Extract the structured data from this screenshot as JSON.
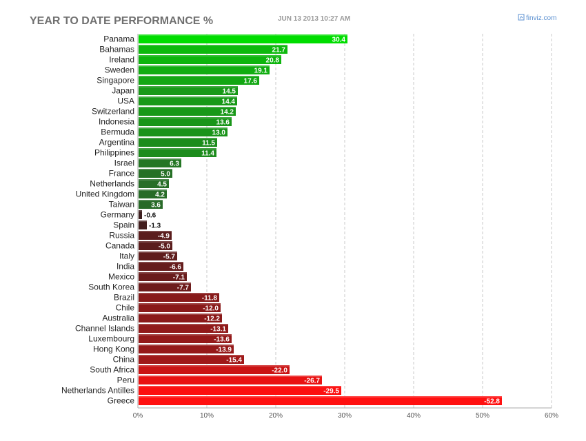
{
  "header": {
    "title": "YEAR TO DATE PERFORMANCE %",
    "timestamp": "JUN 13 2013 10:27 AM",
    "brand": "finviz.com",
    "brand_icon": "finviz-logo-icon"
  },
  "colors": {
    "positive_high": "#00dd00",
    "positive_low": "#2e5a2e",
    "negative_low": "#3a2020",
    "negative_high": "#ff1010",
    "grid": "#c8c8c8"
  },
  "chart_data": {
    "type": "bar",
    "orientation": "horizontal",
    "title": "YEAR TO DATE PERFORMANCE %",
    "xlabel": "",
    "ylabel": "",
    "xlim": [
      0,
      60
    ],
    "x_ticks": [
      "0%",
      "10%",
      "20%",
      "30%",
      "40%",
      "50%",
      "60%"
    ],
    "grid": true,
    "bar_length": "absolute value",
    "categories": [
      "Panama",
      "Bahamas",
      "Ireland",
      "Sweden",
      "Singapore",
      "Japan",
      "USA",
      "Switzerland",
      "Indonesia",
      "Bermuda",
      "Argentina",
      "Philippines",
      "Israel",
      "France",
      "Netherlands",
      "United Kingdom",
      "Taiwan",
      "Germany",
      "Spain",
      "Russia",
      "Canada",
      "Italy",
      "India",
      "Mexico",
      "South Korea",
      "Brazil",
      "Chile",
      "Australia",
      "Channel Islands",
      "Luxembourg",
      "Hong Kong",
      "China",
      "South Africa",
      "Peru",
      "Netherlands Antilles",
      "Greece"
    ],
    "values": [
      30.4,
      21.7,
      20.8,
      19.1,
      17.6,
      14.5,
      14.4,
      14.2,
      13.6,
      13.0,
      11.5,
      11.4,
      6.3,
      5.0,
      4.5,
      4.2,
      3.6,
      -0.6,
      -1.3,
      -4.9,
      -5.0,
      -5.7,
      -6.6,
      -7.1,
      -7.7,
      -11.8,
      -12.0,
      -12.2,
      -13.1,
      -13.6,
      -13.9,
      -15.4,
      -22.0,
      -26.7,
      -29.5,
      -52.8
    ],
    "value_labels": [
      "30.4",
      "21.7",
      "20.8",
      "19.1",
      "17.6",
      "14.5",
      "14.4",
      "14.2",
      "13.6",
      "13.0",
      "11.5",
      "11.4",
      "6.3",
      "5.0",
      "4.5",
      "4.2",
      "3.6",
      "-0.6",
      "-1.3",
      "-4.9",
      "-5.0",
      "-5.7",
      "-6.6",
      "-7.1",
      "-7.7",
      "-11.8",
      "-12.0",
      "-12.2",
      "-13.1",
      "-13.6",
      "-13.9",
      "-15.4",
      "-22.0",
      "-26.7",
      "-29.5",
      "-52.8"
    ]
  }
}
